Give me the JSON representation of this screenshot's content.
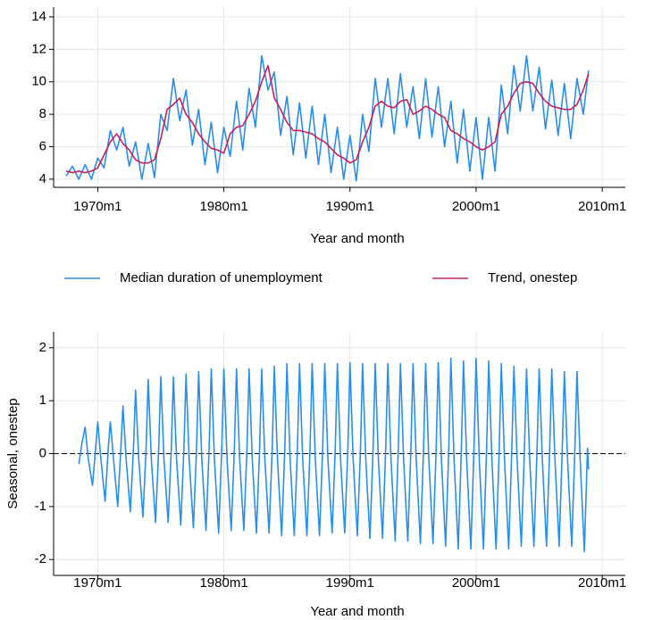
{
  "chart_data": [
    {
      "type": "line",
      "xlabel": "Year and month",
      "xlim": [
        78,
        622
      ],
      "xticks": [
        {
          "value": 120,
          "label": "1970m1"
        },
        {
          "value": 240,
          "label": "1980m1"
        },
        {
          "value": 360,
          "label": "1990m1"
        },
        {
          "value": 480,
          "label": "2000m1"
        },
        {
          "value": 600,
          "label": "2010m1"
        }
      ],
      "ylim": [
        3.5,
        14.6
      ],
      "yticks": [
        4,
        6,
        8,
        10,
        12,
        14
      ],
      "grid": true,
      "legend": "bottom",
      "x": [
        90,
        96,
        102,
        108,
        114,
        120,
        126,
        132,
        138,
        144,
        150,
        156,
        162,
        168,
        174,
        180,
        186,
        192,
        198,
        204,
        210,
        216,
        222,
        228,
        234,
        240,
        246,
        252,
        258,
        264,
        270,
        276,
        282,
        288,
        294,
        300,
        306,
        312,
        318,
        324,
        330,
        336,
        342,
        348,
        354,
        360,
        366,
        372,
        378,
        384,
        390,
        396,
        402,
        408,
        414,
        420,
        426,
        432,
        438,
        444,
        450,
        456,
        462,
        468,
        474,
        480,
        486,
        492,
        498,
        504,
        510,
        516,
        522,
        528,
        534,
        540,
        546,
        552,
        558,
        564,
        570,
        576,
        582,
        587
      ],
      "series": [
        {
          "name": "Median duration of unemployment",
          "color": "#2a8ee8",
          "values": [
            4.2,
            4.8,
            4.0,
            4.9,
            4.0,
            5.3,
            4.7,
            7.0,
            5.8,
            7.2,
            4.8,
            6.3,
            4.0,
            6.2,
            4.1,
            8.0,
            7.0,
            10.2,
            7.6,
            9.5,
            6.1,
            8.3,
            4.9,
            7.5,
            4.4,
            7.2,
            5.4,
            8.8,
            5.8,
            9.6,
            7.2,
            11.6,
            9.5,
            10.6,
            6.7,
            9.1,
            5.5,
            8.7,
            5.3,
            8.5,
            4.9,
            8.0,
            4.4,
            7.2,
            4.0,
            6.7,
            3.9,
            8.0,
            5.7,
            10.2,
            7.2,
            10.2,
            6.8,
            10.5,
            7.2,
            9.7,
            6.5,
            10.2,
            6.6,
            9.7,
            6.0,
            8.8,
            5.0,
            8.3,
            4.5,
            7.8,
            4.0,
            7.8,
            4.5,
            9.8,
            6.8,
            11.0,
            8.2,
            11.6,
            8.2,
            10.9,
            7.1,
            10.1,
            6.7,
            9.9,
            6.5,
            10.2,
            8.0,
            10.7
          ]
        },
        {
          "name": "Trend, onestep",
          "color": "#c8205a",
          "values": [
            4.5,
            4.4,
            4.5,
            4.4,
            4.5,
            4.7,
            5.5,
            6.3,
            6.8,
            6.2,
            5.8,
            5.2,
            5.0,
            5.0,
            5.2,
            6.5,
            8.3,
            8.6,
            9.0,
            8.0,
            7.5,
            6.8,
            6.3,
            5.9,
            5.8,
            5.6,
            6.8,
            7.2,
            7.3,
            8.0,
            8.8,
            10.0,
            11.0,
            9.0,
            8.3,
            7.5,
            7.0,
            7.0,
            6.9,
            6.8,
            6.5,
            6.3,
            5.9,
            5.5,
            5.3,
            5.0,
            5.2,
            6.3,
            7.2,
            8.5,
            8.8,
            8.5,
            8.4,
            8.8,
            8.9,
            8.0,
            8.2,
            8.5,
            8.3,
            8.0,
            7.8,
            7.0,
            6.8,
            6.5,
            6.3,
            6.0,
            5.8,
            6.0,
            6.3,
            8.0,
            8.5,
            9.3,
            9.9,
            10.0,
            9.9,
            9.3,
            8.8,
            8.5,
            8.4,
            8.3,
            8.3,
            8.6,
            9.5,
            10.5
          ]
        }
      ]
    },
    {
      "type": "line",
      "xlabel": "Year and month",
      "ylabel": "Seasonal, onestep",
      "xlim": [
        78,
        622
      ],
      "xticks": [
        {
          "value": 120,
          "label": "1970m1"
        },
        {
          "value": 240,
          "label": "1980m1"
        },
        {
          "value": 360,
          "label": "1990m1"
        },
        {
          "value": 480,
          "label": "2000m1"
        },
        {
          "value": 600,
          "label": "2010m1"
        }
      ],
      "ylim": [
        -2.3,
        2.3
      ],
      "yticks": [
        2,
        1,
        0,
        -1,
        -2
      ],
      "grid": true,
      "yline": 0,
      "x": [
        102,
        105,
        108,
        111,
        115,
        118,
        120,
        123,
        127,
        130,
        132,
        135,
        139,
        142,
        144,
        147,
        151,
        154,
        156,
        159,
        163,
        166,
        168,
        171,
        175,
        178,
        180,
        183,
        187,
        190,
        192,
        195,
        199,
        202,
        204,
        207,
        211,
        214,
        216,
        219,
        223,
        226,
        228,
        231,
        235,
        238,
        240,
        243,
        247,
        250,
        252,
        255,
        259,
        262,
        264,
        267,
        271,
        274,
        276,
        279,
        283,
        286,
        288,
        291,
        295,
        298,
        300,
        303,
        307,
        310,
        312,
        315,
        319,
        322,
        324,
        327,
        331,
        334,
        336,
        339,
        343,
        346,
        348,
        351,
        355,
        358,
        360,
        363,
        367,
        370,
        372,
        375,
        379,
        382,
        384,
        387,
        391,
        394,
        396,
        399,
        403,
        406,
        408,
        411,
        415,
        418,
        420,
        423,
        427,
        430,
        432,
        435,
        439,
        442,
        444,
        447,
        451,
        454,
        456,
        459,
        463,
        466,
        468,
        471,
        475,
        478,
        480,
        483,
        487,
        490,
        492,
        495,
        499,
        502,
        504,
        507,
        511,
        514,
        516,
        519,
        523,
        526,
        528,
        531,
        535,
        538,
        540,
        543,
        547,
        550,
        552,
        555,
        559,
        562,
        564,
        567,
        571,
        574,
        576,
        579,
        583,
        586,
        587
      ],
      "series": [
        {
          "color": "#2a8ee8",
          "values": [
            -0.2,
            0.2,
            0.5,
            -0.1,
            -0.6,
            0.1,
            0.6,
            -0.1,
            -0.9,
            0.1,
            0.6,
            -0.1,
            -1.0,
            0.1,
            0.9,
            -0.1,
            -1.1,
            0.1,
            1.2,
            -0.1,
            -1.2,
            0.1,
            1.4,
            -0.1,
            -1.3,
            0.1,
            1.45,
            -0.1,
            -1.3,
            0.1,
            1.45,
            -0.1,
            -1.35,
            0.1,
            1.5,
            -0.1,
            -1.4,
            0.1,
            1.55,
            -0.1,
            -1.45,
            0.1,
            1.6,
            -0.1,
            -1.5,
            0.1,
            1.6,
            -0.1,
            -1.45,
            0.1,
            1.6,
            -0.1,
            -1.45,
            0.1,
            1.6,
            -0.1,
            -1.5,
            0.1,
            1.6,
            -0.1,
            -1.5,
            0.1,
            1.65,
            -0.1,
            -1.55,
            0.1,
            1.7,
            -0.1,
            -1.55,
            0.1,
            1.7,
            -0.1,
            -1.55,
            0.1,
            1.7,
            -0.1,
            -1.55,
            0.1,
            1.7,
            -0.1,
            -1.5,
            0.1,
            1.7,
            -0.1,
            -1.5,
            0.1,
            1.72,
            -0.1,
            -1.55,
            0.1,
            1.7,
            -0.1,
            -1.6,
            0.1,
            1.7,
            -0.1,
            -1.6,
            0.1,
            1.7,
            -0.1,
            -1.65,
            0.1,
            1.7,
            -0.1,
            -1.65,
            0.1,
            1.7,
            -0.1,
            -1.7,
            0.1,
            1.7,
            -0.1,
            -1.7,
            0.1,
            1.72,
            -0.1,
            -1.75,
            0.1,
            1.8,
            -0.1,
            -1.8,
            0.1,
            1.75,
            -0.1,
            -1.8,
            0.1,
            1.8,
            -0.1,
            -1.8,
            0.1,
            1.75,
            -0.1,
            -1.8,
            0.1,
            1.7,
            -0.1,
            -1.8,
            0.1,
            1.65,
            -0.1,
            -1.75,
            0.1,
            1.6,
            -0.1,
            -1.75,
            0.1,
            1.6,
            -0.1,
            -1.75,
            0.1,
            1.6,
            -0.1,
            -1.75,
            0.1,
            1.55,
            -0.1,
            -1.75,
            0.1,
            1.55,
            -0.1,
            -1.85,
            0.1,
            -0.3
          ]
        }
      ]
    }
  ]
}
